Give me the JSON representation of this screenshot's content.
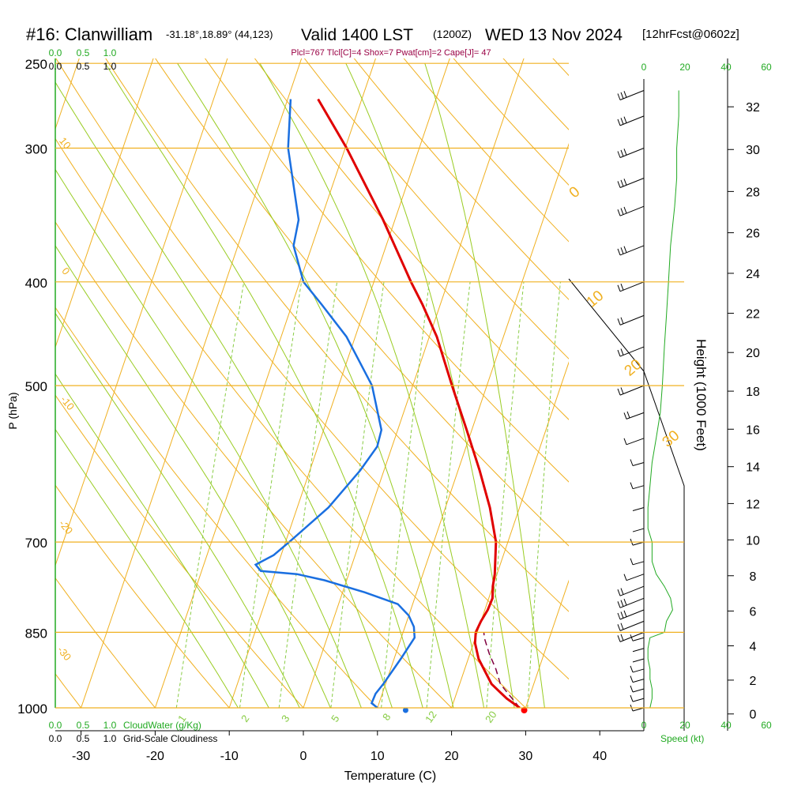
{
  "title": {
    "station": "#16: Clanwilliam",
    "coords": "-31.18°,18.89° (44,123)",
    "valid": "Valid 1400 LST",
    "utc": "(1200Z)",
    "date": "WED 13 Nov 2024",
    "forecast": "[12hrFcst@0602z]"
  },
  "indices": "Plcl=767 Tlcl[C]=4 Shox=7 Pwat[cm]=2 Cape[J]= 47",
  "colors": {
    "temperature": "#e00000",
    "dewpoint": "#1a6fe0",
    "parcel": "#800040",
    "isotherm": "#f0b020",
    "dry_adiabat": "#f0b020",
    "moist_adiabat": "#99cc22",
    "mixing_ratio": "#88cc44",
    "green_label": "#22aa22",
    "indices": "#990044",
    "wind": "#000000"
  },
  "chart_data": {
    "type": "line",
    "subtype": "skew-t log-p sounding",
    "xlabel": "Temperature (C)",
    "ylabel": "P (hPa)",
    "y2label": "Height (1000 Feet)",
    "x_ticks": [
      -30,
      -20,
      -10,
      0,
      10,
      20,
      30,
      40
    ],
    "pressure_ticks": [
      250,
      300,
      400,
      500,
      700,
      850,
      1000
    ],
    "height_ticks": [
      0,
      2,
      4,
      6,
      8,
      10,
      12,
      14,
      16,
      18,
      20,
      22,
      24,
      26,
      28,
      30,
      32
    ],
    "isotherm_labels": [
      "0",
      "10",
      "20",
      "30"
    ],
    "dry_adiabat_labels": [
      "10",
      "0",
      "-10",
      "-20",
      "-30"
    ],
    "mixing_ratio_labels": [
      "1",
      "2",
      "3",
      "5",
      "8",
      "12",
      "20"
    ],
    "cloud_water_ticks": [
      "0.0",
      "0.5",
      "1.0"
    ],
    "cloudiness_ticks": [
      "0.0",
      "0.5",
      "1.0"
    ],
    "cloud_water_label": "CloudWater (g/Kg)",
    "cloudiness_label": "Grid-Scale Cloudiness",
    "wind_speed_ticks": [
      "0",
      "20",
      "40",
      "60"
    ],
    "wind_speed_label": "Speed (kt)",
    "series": [
      {
        "name": "temperature",
        "points": [
          [
            1000,
            29.2
          ],
          [
            980,
            27.0
          ],
          [
            950,
            24.3
          ],
          [
            900,
            21.4
          ],
          [
            870,
            20.2
          ],
          [
            850,
            19.8
          ],
          [
            830,
            20.0
          ],
          [
            810,
            20.4
          ],
          [
            790,
            20.5
          ],
          [
            770,
            20.0
          ],
          [
            750,
            19.7
          ],
          [
            700,
            18.4
          ],
          [
            650,
            16.0
          ],
          [
            600,
            12.9
          ],
          [
            550,
            9.3
          ],
          [
            500,
            5.3
          ],
          [
            450,
            1.0
          ],
          [
            420,
            -2.4
          ],
          [
            400,
            -5.0
          ],
          [
            350,
            -11.6
          ],
          [
            300,
            -19.8
          ],
          [
            270,
            -25.9
          ]
        ]
      },
      {
        "name": "dewpoint",
        "points": [
          [
            1000,
            10.0
          ],
          [
            990,
            9.0
          ],
          [
            970,
            9.1
          ],
          [
            950,
            9.7
          ],
          [
            900,
            10.9
          ],
          [
            860,
            11.8
          ],
          [
            840,
            11.2
          ],
          [
            820,
            10.0
          ],
          [
            800,
            8.0
          ],
          [
            780,
            3.0
          ],
          [
            760,
            -3.0
          ],
          [
            750,
            -7.0
          ],
          [
            745,
            -12.0
          ],
          [
            735,
            -13.0
          ],
          [
            720,
            -11.0
          ],
          [
            700,
            -9.5
          ],
          [
            650,
            -5.8
          ],
          [
            600,
            -3.2
          ],
          [
            570,
            -2.0
          ],
          [
            550,
            -2.2
          ],
          [
            500,
            -5.5
          ],
          [
            450,
            -11.2
          ],
          [
            420,
            -16.0
          ],
          [
            400,
            -19.5
          ],
          [
            370,
            -22.5
          ],
          [
            350,
            -23.0
          ],
          [
            300,
            -27.7
          ],
          [
            270,
            -29.6
          ]
        ]
      },
      {
        "name": "parcel",
        "points": [
          [
            1000,
            29.2
          ],
          [
            970,
            27.0
          ],
          [
            950,
            25.5
          ],
          [
            920,
            24.2
          ],
          [
            890,
            22.6
          ],
          [
            860,
            21.2
          ],
          [
            850,
            20.9
          ]
        ]
      }
    ],
    "surface_markers": {
      "temperature": 29.8,
      "dewpoint": 13.8
    },
    "wind_profile": [
      {
        "p": 1000,
        "speed": 3
      },
      {
        "p": 980,
        "speed": 4
      },
      {
        "p": 960,
        "speed": 4
      },
      {
        "p": 940,
        "speed": 3
      },
      {
        "p": 920,
        "speed": 3
      },
      {
        "p": 900,
        "speed": 2
      },
      {
        "p": 880,
        "speed": 2
      },
      {
        "p": 860,
        "speed": 3
      },
      {
        "p": 850,
        "speed": 10
      },
      {
        "p": 830,
        "speed": 11
      },
      {
        "p": 810,
        "speed": 14
      },
      {
        "p": 790,
        "speed": 13
      },
      {
        "p": 770,
        "speed": 10
      },
      {
        "p": 750,
        "speed": 6
      },
      {
        "p": 730,
        "speed": 4
      },
      {
        "p": 700,
        "speed": 4
      },
      {
        "p": 680,
        "speed": 2
      },
      {
        "p": 650,
        "speed": 2
      },
      {
        "p": 620,
        "speed": 3
      },
      {
        "p": 590,
        "speed": 4
      },
      {
        "p": 560,
        "speed": 6
      },
      {
        "p": 530,
        "speed": 8
      },
      {
        "p": 500,
        "speed": 9
      },
      {
        "p": 460,
        "speed": 10
      },
      {
        "p": 430,
        "speed": 11
      },
      {
        "p": 400,
        "speed": 12
      },
      {
        "p": 370,
        "speed": 13
      },
      {
        "p": 340,
        "speed": 15
      },
      {
        "p": 320,
        "speed": 16
      },
      {
        "p": 300,
        "speed": 16
      },
      {
        "p": 280,
        "speed": 17
      },
      {
        "p": 265,
        "speed": 17
      }
    ]
  }
}
